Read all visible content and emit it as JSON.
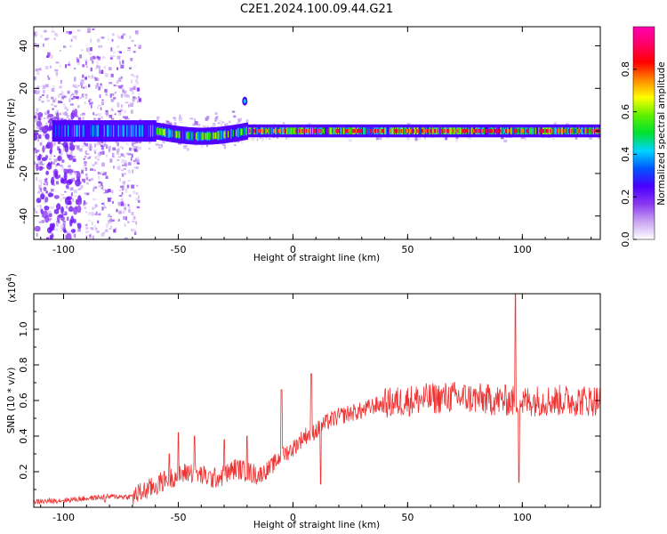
{
  "title": "C2E1.2024.100.09.44.G21",
  "colors": {
    "snr_line": "#ee3333",
    "frame": "#000000"
  },
  "chart_data": [
    {
      "type": "heatmap",
      "xlabel": "Height of straight line (km)",
      "ylabel": "Frequency (Hz)",
      "xlim": [
        -113,
        134
      ],
      "ylim": [
        -51,
        49
      ],
      "x_ticks": [
        "-100",
        "-50",
        "0",
        "50",
        "100"
      ],
      "y_ticks": [
        "40",
        "20",
        "0",
        "-20",
        "-40"
      ],
      "colorbar": {
        "label": "Normalized spectral amplitude",
        "range": [
          0.0,
          1.0
        ],
        "ticks": [
          "0.0",
          "0.2",
          "0.4",
          "0.6",
          "0.8"
        ],
        "colormap": [
          "#ffffff",
          "#c9a5f2",
          "#8a38f0",
          "#4a00ff",
          "#0055ff",
          "#00d4ff",
          "#00e030",
          "#5ef000",
          "#ffff00",
          "#ff8800",
          "#ff0000",
          "#ff0066",
          "#ff00b0"
        ]
      },
      "band": {
        "center_frequency_hz": 0,
        "low_snr_region_km": [
          -113,
          -67
        ],
        "bright_region_km": [
          -20,
          134
        ],
        "isolated_spot": {
          "x_km": -21,
          "y_hz": 14
        }
      }
    },
    {
      "type": "line",
      "xlabel": "Height of straight line (km)",
      "ylabel": "SNR (10 * v/v)",
      "yscale_label": "(x10",
      "yscale_exp": "4",
      "yscale_close": ")",
      "xlim": [
        -113,
        134
      ],
      "ylim": [
        0,
        1.2
      ],
      "x_ticks": [
        "-100",
        "-50",
        "0",
        "50",
        "100"
      ],
      "y_ticks": [
        "0.2",
        "0.4",
        "0.6",
        "0.8",
        "1.0"
      ],
      "series": [
        {
          "x": [
            -113,
            -100,
            -90,
            -80,
            -70,
            -65,
            -60,
            -55,
            -50,
            -45,
            -40,
            -35,
            -30,
            -25,
            -20,
            -15,
            -10,
            -5,
            0,
            5,
            10,
            15,
            20,
            25,
            30,
            35,
            40,
            50,
            60,
            70,
            80,
            90,
            95,
            100,
            105,
            110,
            120,
            134
          ],
          "y": [
            0.03,
            0.04,
            0.05,
            0.06,
            0.06,
            0.09,
            0.12,
            0.16,
            0.18,
            0.2,
            0.18,
            0.16,
            0.18,
            0.22,
            0.2,
            0.18,
            0.22,
            0.29,
            0.33,
            0.4,
            0.43,
            0.48,
            0.51,
            0.53,
            0.54,
            0.57,
            0.58,
            0.6,
            0.61,
            0.62,
            0.61,
            0.6,
            0.6,
            0.59,
            0.6,
            0.6,
            0.6,
            0.6
          ]
        }
      ],
      "spikes": [
        {
          "x": -82,
          "y": 0.03
        },
        {
          "x": -54,
          "y": 0.3
        },
        {
          "x": -50,
          "y": 0.42
        },
        {
          "x": -43,
          "y": 0.4
        },
        {
          "x": -30,
          "y": 0.38
        },
        {
          "x": -20,
          "y": 0.4
        },
        {
          "x": -5,
          "y": 0.66
        },
        {
          "x": 8,
          "y": 0.75
        },
        {
          "x": 12,
          "y": 0.13
        },
        {
          "x": 97,
          "y": 1.21
        },
        {
          "x": 98.5,
          "y": 0.14
        }
      ]
    }
  ]
}
